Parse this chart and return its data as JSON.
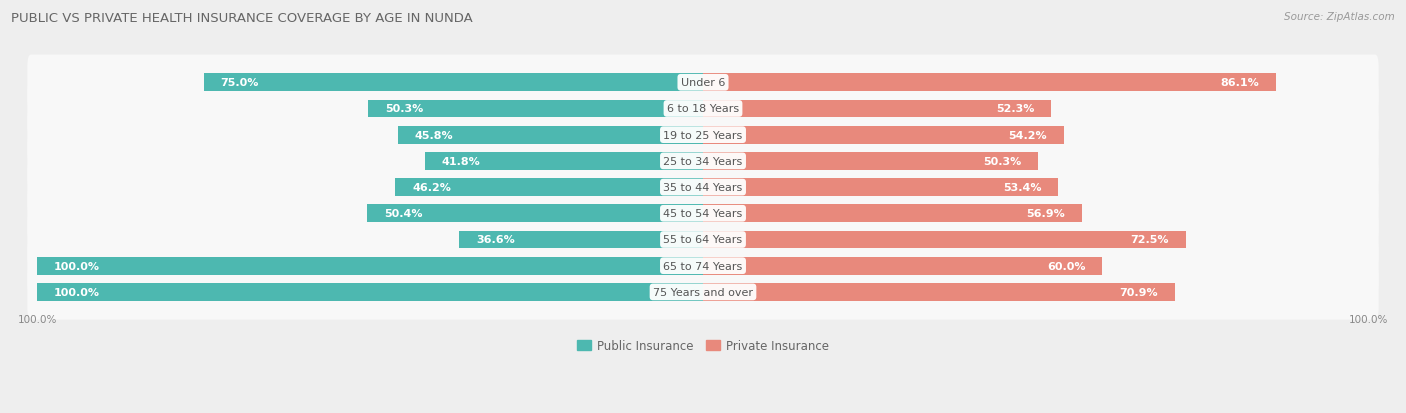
{
  "title": "PUBLIC VS PRIVATE HEALTH INSURANCE COVERAGE BY AGE IN NUNDA",
  "source": "Source: ZipAtlas.com",
  "categories": [
    "Under 6",
    "6 to 18 Years",
    "19 to 25 Years",
    "25 to 34 Years",
    "35 to 44 Years",
    "45 to 54 Years",
    "55 to 64 Years",
    "65 to 74 Years",
    "75 Years and over"
  ],
  "public_values": [
    75.0,
    50.3,
    45.8,
    41.8,
    46.2,
    50.4,
    36.6,
    100.0,
    100.0
  ],
  "private_values": [
    86.1,
    52.3,
    54.2,
    50.3,
    53.4,
    56.9,
    72.5,
    60.0,
    70.9
  ],
  "public_color": "#4db8b0",
  "private_color": "#e8897c",
  "bg_color": "#eeeeee",
  "bar_bg_color": "#f8f8f8",
  "bar_height": 0.68,
  "x_max": 100.0,
  "title_fontsize": 9.5,
  "label_fontsize": 8.0,
  "category_fontsize": 8.0,
  "legend_fontsize": 8.5,
  "source_fontsize": 7.5,
  "pub_white_thresh": 20,
  "priv_white_thresh": 20
}
